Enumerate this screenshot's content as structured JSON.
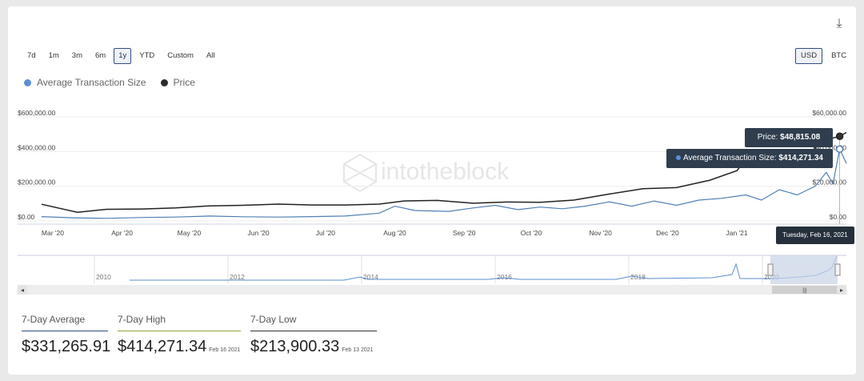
{
  "toolbar": {
    "ranges": [
      "7d",
      "1m",
      "3m",
      "6m",
      "1y",
      "YTD",
      "Custom",
      "All"
    ],
    "active_range": "1y",
    "currencies": [
      "USD",
      "BTC"
    ],
    "active_currency": "USD"
  },
  "legend": [
    {
      "name": "Average Transaction Size",
      "color": "#5b8fd2"
    },
    {
      "name": "Price",
      "color": "#2b2b2b"
    }
  ],
  "watermark": "intotheblock",
  "tooltip": {
    "price_label": "Price:",
    "price_value": "$48,815.08",
    "ats_label": "Average Transaction Size:",
    "ats_value": "$414,271.34",
    "date": "Tuesday, Feb 16, 2021"
  },
  "chart_data": {
    "type": "line",
    "x_ticks": [
      "Mar '20",
      "Apr '20",
      "May '20",
      "Jun '20",
      "Jul '20",
      "Aug '20",
      "Sep '20",
      "Oct '20",
      "Nov '20",
      "Dec '20",
      "Jan '21"
    ],
    "y_left_ticks": [
      "$600,000.00",
      "$400,000.00",
      "$200,000.00",
      "$0.00"
    ],
    "y_left_range": [
      0,
      600000
    ],
    "y_right_ticks": [
      "$60,000.00",
      "$40,000.00",
      "$20,000.00",
      "$0.00"
    ],
    "y_right_range": [
      0,
      60000
    ],
    "series": [
      {
        "name": "Average Transaction Size",
        "axis": "left",
        "color": "#4f7fb3",
        "points": [
          [
            "2020-02-25",
            25000
          ],
          [
            "2020-03-10",
            18000
          ],
          [
            "2020-03-25",
            15000
          ],
          [
            "2020-04-10",
            20000
          ],
          [
            "2020-04-25",
            22000
          ],
          [
            "2020-05-10",
            28000
          ],
          [
            "2020-05-25",
            24000
          ],
          [
            "2020-06-10",
            22000
          ],
          [
            "2020-06-25",
            25000
          ],
          [
            "2020-07-10",
            28000
          ],
          [
            "2020-07-25",
            45000
          ],
          [
            "2020-08-01",
            85000
          ],
          [
            "2020-08-10",
            60000
          ],
          [
            "2020-08-25",
            55000
          ],
          [
            "2020-09-05",
            75000
          ],
          [
            "2020-09-15",
            90000
          ],
          [
            "2020-09-25",
            65000
          ],
          [
            "2020-10-05",
            80000
          ],
          [
            "2020-10-15",
            70000
          ],
          [
            "2020-10-25",
            85000
          ],
          [
            "2020-11-05",
            110000
          ],
          [
            "2020-11-15",
            85000
          ],
          [
            "2020-11-25",
            115000
          ],
          [
            "2020-12-05",
            90000
          ],
          [
            "2020-12-15",
            120000
          ],
          [
            "2020-12-25",
            130000
          ],
          [
            "2021-01-05",
            150000
          ],
          [
            "2021-01-12",
            120000
          ],
          [
            "2021-01-20",
            180000
          ],
          [
            "2021-01-28",
            150000
          ],
          [
            "2021-02-05",
            200000
          ],
          [
            "2021-02-10",
            280000
          ],
          [
            "2021-02-13",
            213900
          ],
          [
            "2021-02-16",
            414271
          ],
          [
            "2021-02-19",
            331266
          ]
        ]
      },
      {
        "name": "Price",
        "axis": "right",
        "color": "#222222",
        "points": [
          [
            "2020-02-25",
            9600
          ],
          [
            "2020-03-12",
            5000
          ],
          [
            "2020-03-25",
            6700
          ],
          [
            "2020-04-10",
            6900
          ],
          [
            "2020-04-25",
            7500
          ],
          [
            "2020-05-10",
            8700
          ],
          [
            "2020-05-25",
            9000
          ],
          [
            "2020-06-10",
            9700
          ],
          [
            "2020-06-25",
            9200
          ],
          [
            "2020-07-10",
            9200
          ],
          [
            "2020-07-25",
            9700
          ],
          [
            "2020-08-05",
            11500
          ],
          [
            "2020-08-20",
            11800
          ],
          [
            "2020-09-05",
            10200
          ],
          [
            "2020-09-20",
            10900
          ],
          [
            "2020-10-05",
            10700
          ],
          [
            "2020-10-20",
            12000
          ],
          [
            "2020-11-05",
            15500
          ],
          [
            "2020-11-20",
            18600
          ],
          [
            "2020-12-05",
            19200
          ],
          [
            "2020-12-20",
            23500
          ],
          [
            "2021-01-01",
            29000
          ],
          [
            "2021-01-08",
            40000
          ],
          [
            "2021-01-20",
            35000
          ],
          [
            "2021-01-30",
            34000
          ],
          [
            "2021-02-08",
            46000
          ],
          [
            "2021-02-16",
            48815
          ],
          [
            "2021-02-19",
            51000
          ]
        ]
      }
    ],
    "tooltip_x": "2021-02-16",
    "x_start": "2020-02-25",
    "x_end": "2021-02-19"
  },
  "navigator": {
    "years": [
      "2010",
      "2012",
      "2014",
      "2016",
      "2018",
      "2020"
    ],
    "scroll_left": "◂",
    "scroll_right": "▸",
    "handle_grip": "|||"
  },
  "stats": [
    {
      "label": "7-Day Average",
      "value": "$331,265.91",
      "date": ""
    },
    {
      "label": "7-Day High",
      "value": "$414,271.34",
      "date": "Feb 16 2021"
    },
    {
      "label": "7-Day Low",
      "value": "$213,900.33",
      "date": "Feb 13 2021"
    }
  ],
  "download_icon": "download-icon"
}
